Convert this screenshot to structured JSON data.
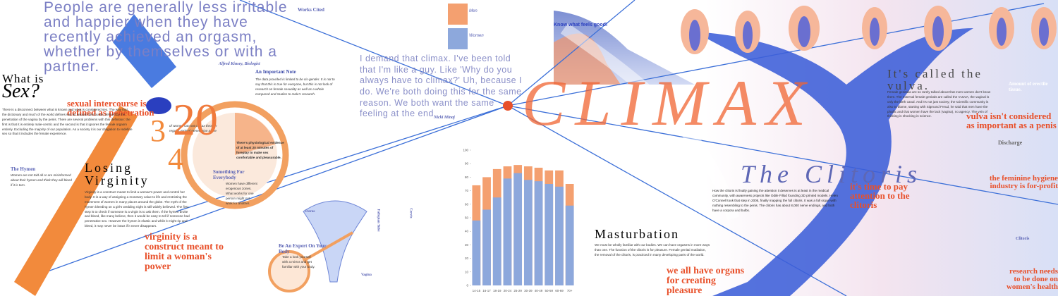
{
  "quote_kinsey": {
    "text": "People are generally less irritable and happier when they have recently achieved an orgasm, whether by themselves or with a partner.",
    "author": "Alfred Kinsey, Biologist"
  },
  "sex": {
    "title_a": "What is",
    "title_b": "Sex?",
    "callout": "sexual intercourse is defined as penetration",
    "body": "There is a disconnect between what is known and what is considered sex. The way that the dictionary and much of the world defines sex as sexual intercourse, defined by the penetration of the vagina by the penis. There are several problems with this definition: the first is that it is entirely male-centric and the second is that it ignores the female orgasm entirely. Excluding the majority of our population. As a society it is our obligation to redefine sex so that it includes the female experience."
  },
  "fraction": {
    "top": "3",
    "bottom": "4",
    "note": "of women can not climax through regular vaginal penetration alone"
  },
  "twenty": {
    "number": "20",
    "note": "There's physiological evidence of at least 20 minutes of foreplay to make sex comfortable and pleasurable."
  },
  "note": {
    "title": "An Important Note",
    "body": "The data provided is limited to be cis-gender. It is not to say that this is true for everyone, but this is not lack of research on female sexuality as well as a whole compared and studies to male's research."
  },
  "works_cited": {
    "title": "Works Cited"
  },
  "hymen": {
    "title": "The Hymen",
    "body": "Women are not told all or are misinformed about their hymen and think they will bleed if it is torn."
  },
  "virginity": {
    "title_a": "Losing",
    "title_b": "Virginity",
    "body": "Virginity is a construct meant to limit a woman's power and control her body. It is a way of assigning a monetary value to life and restricting the movement of women in many places around the globe. The myth of the hymen bleeding on a girl's wedding night is still widely believed. The first step is to check if someone is a virgin is to ask them. If the hymen broke and bleed, like many believe, then it would be easy to tell if someone had penetrative sex. However the hymen is elastic and while it might rip and bleed, it may never be intact if it never disappears.",
    "callout": "virginity is a construct meant to limit a woman's power"
  },
  "everybody": {
    "title": "Something For Everybody",
    "body": "Women have different erogenous zones. What works for one person might not work for another."
  },
  "expert": {
    "title": "Be An Expert On Your Body",
    "body": "Take a look yourself with a mirror and get familiar with your body."
  },
  "anatomy": {
    "uterus": "Uterus",
    "vagina": "Vagina",
    "tube": "Fallopian Tube",
    "cervix": "Cervix"
  },
  "quote_minaj": {
    "text": "I demand that climax. I've been told that I'm like a guy. Like 'Why do you always have to climax?' Uh, because I do. We're both doing this for the same reason. We both want the same feeling at the end.",
    "author": "Nicki Minaj"
  },
  "know": {
    "title": "Know what feels good!"
  },
  "climax": "CLIMAX",
  "vulva": {
    "title": "It's called the vulva.",
    "body": "Female genitalia are so rarely talked about that even women don't know them. The external female genitals are called the VULVA, the vaginal is only the birth canal. And it's not just society; the scientific community is also to blame, starting with Sigmund Freud, he said that men have the phallic and that women have the lack (vagina), no agency. The vein of thinking is shocking in science.",
    "callout": "vulva isn't considered as important as a penis"
  },
  "erectile": {
    "title": "Amount of erectile tissue."
  },
  "clitoris": {
    "title": "The Clitoris",
    "callout": "it's time to pay attention to the clitoris",
    "body": "How the clitoris is finally gaining the attention it deserves is at least in the medical community, with awareness projects like Odile Fillod founding 3D printed models. Helen O'Connell took that step in 2005, finally mapping the full clitoris. It was a full organ with nothing resembling to the penis. The clitoris has about 8,000 nerve endings, and both have a corpora and bulbs."
  },
  "masturbation": {
    "title": "Masturbation",
    "body": "We must be wholly familiar with our bodies. We can have orgasms in more ways than one. The function of the clitoris is for pleasure. Female genital mutilation, the removal of the clitoris, is practiced in many developing parts of the world.",
    "callout": "we all have organs for creating pleasure"
  },
  "discharge": {
    "title": "Discharge",
    "callout": "the feminine hygiene industry is for-profit"
  },
  "research": {
    "title": "Clitoris",
    "callout": "research needs to be done on women's health"
  },
  "chart_data": {
    "type": "bar",
    "categories": [
      "14-15",
      "16-17",
      "18-19",
      "20-24",
      "25-29",
      "30-39",
      "40-49",
      "50-59",
      "60-69",
      "70+"
    ],
    "series": [
      {
        "name": "Men",
        "color": "#f4a070",
        "values": [
          74,
          80,
          86,
          88,
          89,
          88,
          87,
          85,
          85,
          75
        ]
      },
      {
        "name": "Women",
        "color": "#8da8dc",
        "values": [
          48,
          56,
          65,
          79,
          83,
          78,
          77,
          75,
          73,
          59
        ]
      }
    ],
    "ylim": [
      0,
      100
    ],
    "yticks": [
      0,
      10,
      20,
      30,
      40,
      50,
      60,
      70,
      80,
      90,
      100
    ],
    "grid": false
  }
}
